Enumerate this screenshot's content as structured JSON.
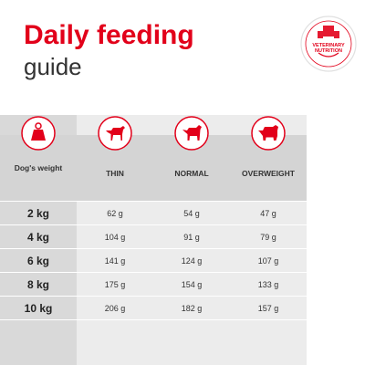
{
  "title": "Daily feeding",
  "subtitle": "guide",
  "badge": {
    "text": "VETERINARY NUTRITION",
    "color": "#e2001a"
  },
  "table": {
    "weight_header": "Dog's weight",
    "columns": [
      "THIN",
      "NORMAL",
      "OVERWEIGHT"
    ],
    "column_icons": [
      "thin-dog-icon",
      "normal-dog-icon",
      "overweight-dog-icon"
    ],
    "weight_icon": "weight-icon",
    "rows": [
      {
        "weight": "2 kg",
        "values": [
          "62 g",
          "54 g",
          "47 g"
        ]
      },
      {
        "weight": "4 kg",
        "values": [
          "104 g",
          "91 g",
          "79 g"
        ]
      },
      {
        "weight": "6 kg",
        "values": [
          "141 g",
          "124 g",
          "107 g"
        ]
      },
      {
        "weight": "8 kg",
        "values": [
          "175 g",
          "154 g",
          "133 g"
        ]
      },
      {
        "weight": "10 kg",
        "values": [
          "206 g",
          "182 g",
          "157 g"
        ]
      }
    ]
  },
  "colors": {
    "accent": "#e2001a",
    "header_band": "#d4d4d4",
    "row_band": "#ececec"
  }
}
